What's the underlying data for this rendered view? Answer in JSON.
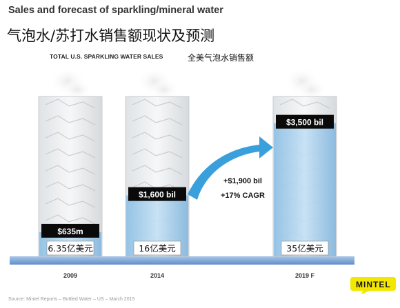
{
  "header": {
    "title_en": "Sales and forecast of sparkling/mineral water",
    "title_zh": "气泡水/苏打水销售额现状及预测",
    "subtitle_en": "TOTAL U.S. SPARKLING WATER SALES",
    "subtitle_zh": "全美气泡水销售额"
  },
  "chart_data": {
    "type": "bar",
    "categories": [
      "2009",
      "2014",
      "2019 F"
    ],
    "values": [
      635,
      1600,
      3500
    ],
    "unit": "million USD",
    "value_labels": [
      "$635m",
      "$1,600 bil",
      "$3,500 bil"
    ],
    "value_labels_zh": [
      "6.35亿美元",
      "16亿美元",
      "35亿美元"
    ],
    "annotations": {
      "growth": "+$1,900 bil",
      "cagr": "+17% CAGR"
    },
    "ylim": [
      0,
      4200
    ],
    "colors": {
      "water": "#9ec9e8",
      "label_bg": "#0a0a0a",
      "arrow": "#3aa0dc",
      "base": "#7fa8d8"
    }
  },
  "footer": {
    "source": "Source: Mintel Reports – Bottled Water – US – March 2015",
    "logo": "MINTEL"
  }
}
